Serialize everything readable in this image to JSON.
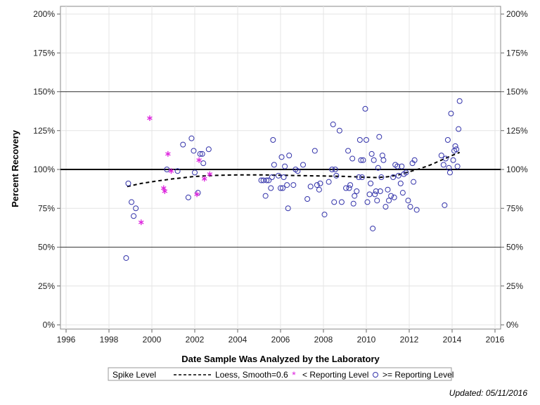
{
  "footer": {
    "updated": "Updated: 05/11/2016"
  },
  "chart_data": {
    "type": "scatter",
    "xlabel": "Date Sample Was Analyzed by the Laboratory",
    "ylabel": "Percent Recovery",
    "xlim": [
      1996,
      2016
    ],
    "ylim": [
      0,
      200
    ],
    "x_ticks": [
      "1996",
      "1998",
      "2000",
      "2002",
      "2004",
      "2006",
      "2008",
      "2010",
      "2012",
      "2014",
      "2016"
    ],
    "y_ticks": [
      "0%",
      "25%",
      "50%",
      "75%",
      "100%",
      "125%",
      "150%",
      "175%",
      "200%"
    ],
    "grid": true,
    "reference_lines": [
      {
        "y": 50,
        "style": "thin"
      },
      {
        "y": 100,
        "style": "thick"
      },
      {
        "y": 150,
        "style": "thin"
      }
    ],
    "legend": {
      "title": "Spike Level",
      "placement": "bottom",
      "entries": [
        "Loess, Smooth=0.6",
        "< Reporting Level",
        ">= Reporting Level"
      ]
    },
    "colors": {
      "points": "#3333aa",
      "below_rl": "#dd22dd",
      "loess": "#000000",
      "ref": "#000000"
    },
    "series": [
      {
        "name": ">= Reporting Level",
        "marker": "circle",
        "points": [
          [
            1998.8,
            43
          ],
          [
            1998.9,
            91
          ],
          [
            1999.05,
            79
          ],
          [
            1999.15,
            70
          ],
          [
            1999.25,
            75
          ],
          [
            2000.7,
            100
          ],
          [
            2001.2,
            99
          ],
          [
            2001.45,
            116
          ],
          [
            2001.7,
            82
          ],
          [
            2001.85,
            120
          ],
          [
            2001.95,
            112
          ],
          [
            2002.0,
            98
          ],
          [
            2002.15,
            85
          ],
          [
            2002.25,
            110
          ],
          [
            2002.35,
            110
          ],
          [
            2002.4,
            104
          ],
          [
            2002.65,
            113
          ],
          [
            2005.1,
            93
          ],
          [
            2005.2,
            93
          ],
          [
            2005.3,
            83
          ],
          [
            2005.35,
            93
          ],
          [
            2005.45,
            93
          ],
          [
            2005.55,
            88
          ],
          [
            2005.6,
            95
          ],
          [
            2005.65,
            119
          ],
          [
            2005.7,
            103
          ],
          [
            2005.9,
            96
          ],
          [
            2006.0,
            88
          ],
          [
            2006.05,
            108
          ],
          [
            2006.1,
            88
          ],
          [
            2006.15,
            95
          ],
          [
            2006.2,
            102
          ],
          [
            2006.3,
            90
          ],
          [
            2006.35,
            75
          ],
          [
            2006.4,
            109
          ],
          [
            2006.6,
            90
          ],
          [
            2006.7,
            100
          ],
          [
            2006.8,
            99
          ],
          [
            2007.05,
            103
          ],
          [
            2007.25,
            81
          ],
          [
            2007.4,
            89
          ],
          [
            2007.6,
            112
          ],
          [
            2007.7,
            90
          ],
          [
            2007.8,
            87
          ],
          [
            2007.85,
            91
          ],
          [
            2008.05,
            71
          ],
          [
            2008.25,
            92
          ],
          [
            2008.4,
            100
          ],
          [
            2008.45,
            129
          ],
          [
            2008.5,
            79
          ],
          [
            2008.55,
            100
          ],
          [
            2008.6,
            96
          ],
          [
            2008.75,
            125
          ],
          [
            2008.85,
            79
          ],
          [
            2009.05,
            88
          ],
          [
            2009.15,
            112
          ],
          [
            2009.2,
            88
          ],
          [
            2009.25,
            90
          ],
          [
            2009.35,
            107
          ],
          [
            2009.4,
            78
          ],
          [
            2009.45,
            83
          ],
          [
            2009.55,
            86
          ],
          [
            2009.65,
            95
          ],
          [
            2009.7,
            119
          ],
          [
            2009.75,
            106
          ],
          [
            2009.8,
            95
          ],
          [
            2009.85,
            106
          ],
          [
            2009.95,
            139
          ],
          [
            2010.0,
            119
          ],
          [
            2010.05,
            79
          ],
          [
            2010.15,
            84
          ],
          [
            2010.2,
            91
          ],
          [
            2010.25,
            110
          ],
          [
            2010.3,
            62
          ],
          [
            2010.35,
            106
          ],
          [
            2010.4,
            84
          ],
          [
            2010.45,
            86
          ],
          [
            2010.5,
            80
          ],
          [
            2010.55,
            101
          ],
          [
            2010.6,
            121
          ],
          [
            2010.65,
            86
          ],
          [
            2010.7,
            95
          ],
          [
            2010.75,
            109
          ],
          [
            2010.8,
            106
          ],
          [
            2010.9,
            76
          ],
          [
            2011.0,
            87
          ],
          [
            2011.05,
            80
          ],
          [
            2011.15,
            83
          ],
          [
            2011.25,
            95
          ],
          [
            2011.3,
            82
          ],
          [
            2011.35,
            103
          ],
          [
            2011.45,
            102
          ],
          [
            2011.5,
            96
          ],
          [
            2011.6,
            91
          ],
          [
            2011.65,
            102
          ],
          [
            2011.7,
            85
          ],
          [
            2011.75,
            97
          ],
          [
            2011.85,
            98
          ],
          [
            2011.95,
            80
          ],
          [
            2012.05,
            76
          ],
          [
            2012.15,
            104
          ],
          [
            2012.2,
            92
          ],
          [
            2012.25,
            106
          ],
          [
            2012.35,
            74
          ],
          [
            2013.5,
            109
          ],
          [
            2013.6,
            103
          ],
          [
            2013.65,
            77
          ],
          [
            2013.7,
            107
          ],
          [
            2013.8,
            119
          ],
          [
            2013.85,
            101
          ],
          [
            2013.9,
            98
          ],
          [
            2013.95,
            136
          ],
          [
            2014.05,
            106
          ],
          [
            2014.1,
            112
          ],
          [
            2014.15,
            115
          ],
          [
            2014.2,
            113
          ],
          [
            2014.25,
            102
          ],
          [
            2014.3,
            126
          ],
          [
            2014.35,
            144
          ]
        ]
      },
      {
        "name": "< Reporting Level",
        "marker": "star",
        "points": [
          [
            1999.5,
            66
          ],
          [
            1999.9,
            133
          ],
          [
            2000.55,
            88
          ],
          [
            2000.6,
            86
          ],
          [
            2000.75,
            110
          ],
          [
            2000.9,
            99
          ],
          [
            2002.1,
            84
          ],
          [
            2002.2,
            106
          ],
          [
            2002.45,
            94
          ],
          [
            2002.7,
            97
          ]
        ]
      }
    ],
    "loess": [
      [
        1998.85,
        89
      ],
      [
        1999.5,
        91
      ],
      [
        2000.2,
        92.5
      ],
      [
        2001.0,
        94
      ],
      [
        2002.0,
        95.5
      ],
      [
        2003.0,
        96.2
      ],
      [
        2004.0,
        96.5
      ],
      [
        2005.0,
        96.5
      ],
      [
        2006.0,
        96.3
      ],
      [
        2007.0,
        96
      ],
      [
        2008.0,
        95.8
      ],
      [
        2009.0,
        95.5
      ],
      [
        2010.0,
        95
      ],
      [
        2010.5,
        94.8
      ],
      [
        2011.0,
        95.3
      ],
      [
        2011.5,
        96.5
      ],
      [
        2012.0,
        98.5
      ],
      [
        2012.5,
        100.5
      ],
      [
        2013.0,
        103
      ],
      [
        2013.5,
        106
      ],
      [
        2014.0,
        109
      ],
      [
        2014.35,
        111
      ]
    ]
  }
}
